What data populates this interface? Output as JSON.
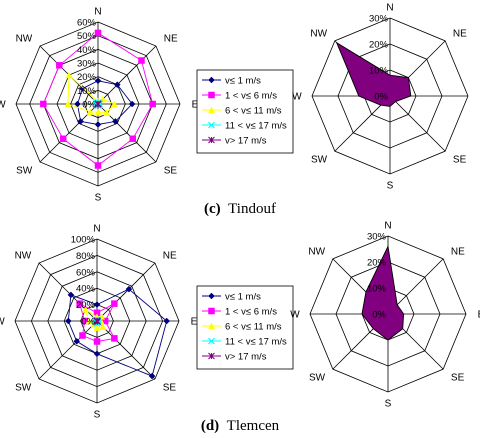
{
  "directions": [
    "N",
    "NE",
    "E",
    "SE",
    "S",
    "SW",
    "W",
    "NW"
  ],
  "panels": [
    {
      "caption_letter": "(c)",
      "caption_name": "Tindouf"
    },
    {
      "caption_letter": "(d)",
      "caption_name": "Tlemcen"
    }
  ],
  "chart_data": [
    {
      "type": "radar",
      "panel": "c",
      "categories": [
        "N",
        "NE",
        "E",
        "SE",
        "S",
        "SW",
        "W",
        "NW"
      ],
      "rlim": [
        0,
        60
      ],
      "ticks": [
        "0%",
        "10%",
        "20%",
        "30%",
        "40%",
        "50%",
        "60%"
      ],
      "tick_values": [
        0,
        10,
        20,
        30,
        40,
        50,
        60
      ],
      "legend_position": "right",
      "series": [
        {
          "name": "v≤ 1 m/s",
          "color": "#000080",
          "marker": "diamond",
          "values": [
            17,
            20,
            25,
            18,
            15,
            18,
            15,
            16
          ]
        },
        {
          "name": "1 < v≤ 6 m/s",
          "color": "#ff00ff",
          "marker": "square",
          "values": [
            52,
            45,
            40,
            36,
            45,
            36,
            40,
            40
          ]
        },
        {
          "name": "6 < v≤ 11 m/s",
          "color": "#ffff00",
          "marker": "triangle",
          "values": [
            2,
            5,
            12,
            9,
            6,
            8,
            22,
            30
          ]
        },
        {
          "name": "11 < v≤ 17 m/s",
          "color": "#00ffff",
          "marker": "x",
          "values": [
            1,
            1,
            1,
            1,
            1,
            1,
            1,
            2
          ]
        },
        {
          "name": "v> 17 m/s",
          "color": "#800080",
          "marker": "star",
          "values": [
            0,
            0,
            0,
            0,
            0,
            0,
            0,
            0
          ]
        }
      ]
    },
    {
      "type": "radar-area",
      "panel": "c",
      "categories": [
        "N",
        "NE",
        "E",
        "SE",
        "S",
        "SW",
        "W",
        "NW"
      ],
      "rlim": [
        0,
        30
      ],
      "ticks": [
        "0%",
        "10%",
        "20%",
        "30%"
      ],
      "tick_values": [
        0,
        10,
        20,
        30
      ],
      "fill": "#800080",
      "values": [
        8,
        10,
        8,
        3,
        4,
        5,
        12,
        29
      ]
    },
    {
      "type": "radar",
      "panel": "d",
      "categories": [
        "N",
        "NE",
        "E",
        "SE",
        "S",
        "SW",
        "W",
        "NW"
      ],
      "rlim": [
        0,
        100
      ],
      "ticks": [
        "0%",
        "20%",
        "40%",
        "60%",
        "80%",
        "100%"
      ],
      "tick_values": [
        0,
        20,
        40,
        60,
        80,
        100
      ],
      "legend_position": "right",
      "series": [
        {
          "name": "v≤ 1 m/s",
          "color": "#000080",
          "marker": "diamond",
          "values": [
            20,
            55,
            85,
            95,
            40,
            35,
            35,
            45
          ]
        },
        {
          "name": "1 < v≤ 6 m/s",
          "color": "#ff00ff",
          "marker": "square",
          "values": [
            10,
            30,
            10,
            30,
            25,
            25,
            15,
            30
          ]
        },
        {
          "name": "6 < v≤ 11 m/s",
          "color": "#ffff00",
          "marker": "triangle",
          "values": [
            5,
            8,
            5,
            10,
            8,
            5,
            10,
            20
          ]
        },
        {
          "name": "11 < v≤ 17 m/s",
          "color": "#00ffff",
          "marker": "x",
          "values": [
            1,
            2,
            1,
            3,
            3,
            2,
            2,
            2
          ]
        },
        {
          "name": "v> 17 m/s",
          "color": "#800080",
          "marker": "star",
          "values": [
            0,
            0,
            0,
            1,
            0,
            0,
            0,
            0
          ]
        }
      ]
    },
    {
      "type": "radar-area",
      "panel": "d",
      "categories": [
        "N",
        "NE",
        "E",
        "SE",
        "S",
        "SW",
        "W",
        "NW"
      ],
      "rlim": [
        0,
        30
      ],
      "ticks": [
        "0%",
        "10%",
        "20%",
        "30%"
      ],
      "tick_values": [
        0,
        10,
        20,
        30
      ],
      "fill": "#800080",
      "values": [
        26,
        5,
        6,
        8,
        10,
        8,
        10,
        12
      ]
    }
  ]
}
